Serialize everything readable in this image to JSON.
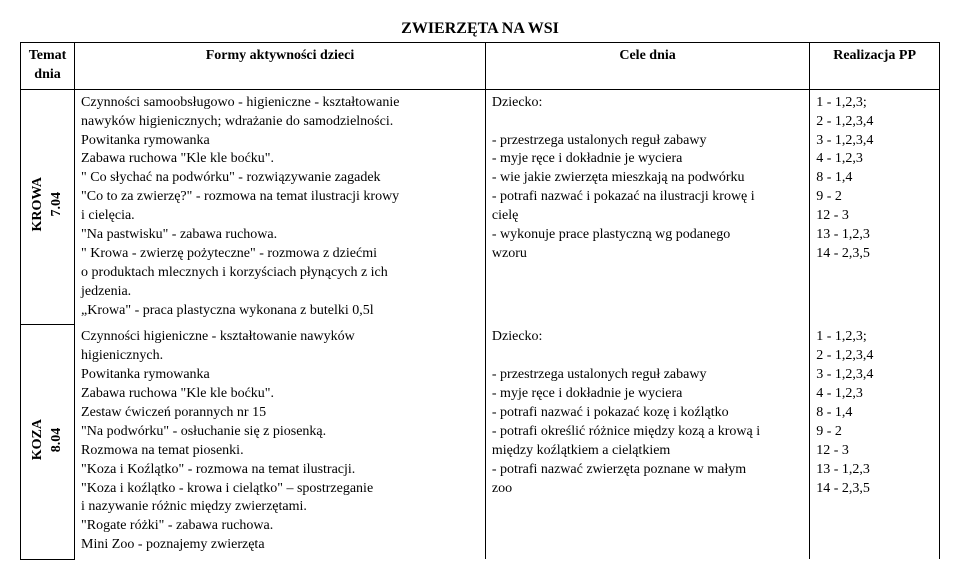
{
  "title": "ZWIERZĘTA NA WSI",
  "headers": {
    "date": "Temat\ndnia",
    "forms": "Formy aktywności dzieci",
    "goals": "Cele dnia",
    "pp": "Realizacja PP"
  },
  "rows": [
    {
      "date": "KROWA\n7.04",
      "forms": "Czynności samoobsługowo - higieniczne - kształtowanie\nnawyków higienicznych; wdrażanie do samodzielności.\nPowitanka rymowanka\nZabawa ruchowa \"Kle kle boćku\".\n\" Co słychać na podwórku\" - rozwiązywanie zagadek\n\"Co to za zwierzę?\" - rozmowa na temat ilustracji krowy\n i cielęcia.\n\"Na pastwisku\" - zabawa ruchowa.\n\" Krowa - zwierzę pożyteczne\" - rozmowa z dziećmi\no produktach mlecznych i korzyściach płynących z ich\njedzenia.\n„Krowa\" - praca plastyczna wykonana z butelki 0,5l",
      "goals": "Dziecko:\n\n- przestrzega ustalonych reguł zabawy\n- myje ręce i dokładnie je wyciera\n- wie jakie zwierzęta mieszkają na podwórku\n- potrafi nazwać i pokazać na ilustracji krowę i\ncielę\n- wykonuje prace plastyczną wg podanego\nwzoru",
      "pp": "1 - 1,2,3;\n2 - 1,2,3,4\n3 - 1,2,3,4\n4 - 1,2,3\n8 - 1,4\n9 - 2\n12 - 3\n13 - 1,2,3\n14 - 2,3,5"
    },
    {
      "date": "KOZA\n8.04",
      "forms": "Czynności higieniczne - kształtowanie nawyków\nhigienicznych.\nPowitanka rymowanka\nZabawa ruchowa \"Kle kle boćku\".\nZestaw ćwiczeń porannych nr 15\n\"Na podwórku\" - osłuchanie się z piosenką.\nRozmowa na temat piosenki.\n\"Koza i Koźlątko\" - rozmowa na temat ilustracji.\n\"Koza i koźlątko - krowa i cielątko\" – spostrzeganie\ni nazywanie różnic między zwierzętami.\n\"Rogate różki\" - zabawa ruchowa.\nMini Zoo - poznajemy zwierzęta",
      "goals": "Dziecko:\n\n- przestrzega ustalonych reguł zabawy\n- myje ręce i dokładnie je wyciera\n- potrafi nazwać i pokazać kozę i koźlątko\n- potrafi określić różnice między kozą a krową i\nmiędzy koźlątkiem a cielątkiem\n- potrafi nazwać zwierzęta poznane w małym\nzoo",
      "pp": "1 - 1,2,3;\n2 - 1,2,3,4\n3 - 1,2,3,4\n4 - 1,2,3\n8 - 1,4\n9 - 2\n12 - 3\n13 - 1,2,3\n14 - 2,3,5"
    }
  ]
}
